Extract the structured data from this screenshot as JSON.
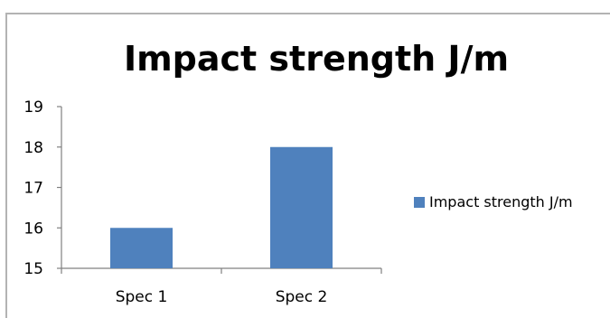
{
  "chart_data": {
    "type": "bar",
    "title": "Impact strength J/m",
    "xlabel": "",
    "ylabel": "",
    "categories": [
      "Spec 1",
      "Spec 2"
    ],
    "series": [
      {
        "name": "Impact strength J/m",
        "values": [
          16,
          18
        ],
        "color": "#4f81bd"
      }
    ],
    "ylim": [
      15,
      19
    ],
    "yticks": [
      "15",
      "16",
      "17",
      "18",
      "19"
    ],
    "grid": false,
    "legend": "right"
  }
}
